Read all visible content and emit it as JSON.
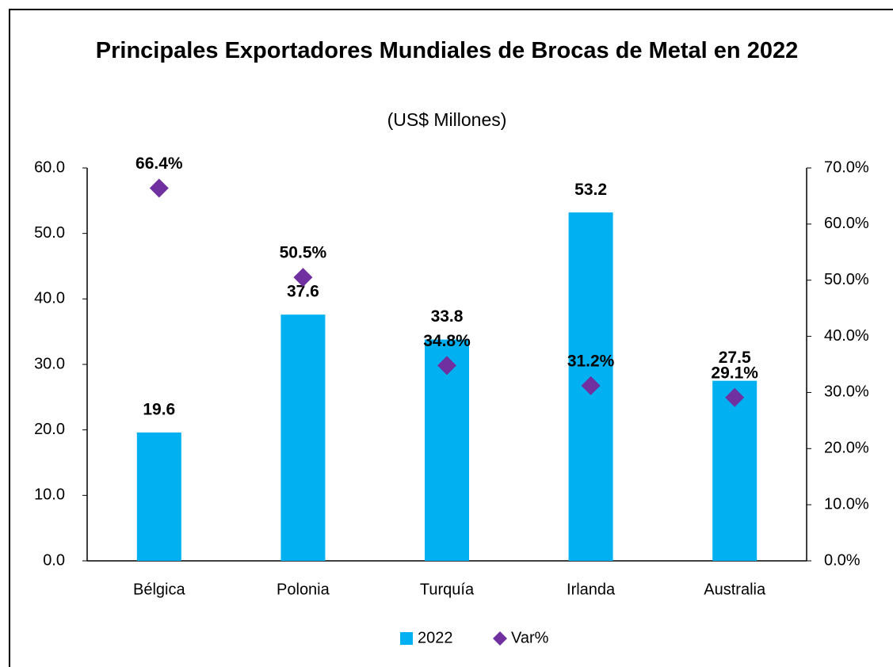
{
  "chart_data": {
    "type": "bar+scatter",
    "title": "Principales Exportadores Mundiales de Brocas de Metal en 2022",
    "subtitle": "(US$ Millones)",
    "categories": [
      "Bélgica",
      "Polonia",
      "Turquía",
      "Irlanda",
      "Australia"
    ],
    "series": [
      {
        "name": "2022",
        "type": "bar",
        "color": "#00b0f0",
        "values": [
          19.6,
          37.6,
          33.8,
          53.2,
          27.5
        ]
      },
      {
        "name": "Var%",
        "type": "scatter",
        "axis": "y2",
        "color": "#7030a0",
        "values": [
          66.4,
          50.5,
          34.8,
          31.2,
          29.1
        ],
        "value_labels": [
          "66.4%",
          "50.5%",
          "34.8%",
          "31.2%",
          "29.1%"
        ]
      }
    ],
    "ylim": [
      0,
      60
    ],
    "yticks": [
      {
        "value": 0,
        "label": "0.0"
      },
      {
        "value": 10,
        "label": "10.0"
      },
      {
        "value": 20,
        "label": "20.0"
      },
      {
        "value": 30,
        "label": "30.0"
      },
      {
        "value": 40,
        "label": "40.0"
      },
      {
        "value": 50,
        "label": "50.0"
      },
      {
        "value": 60,
        "label": "60.0"
      }
    ],
    "y2lim": [
      0,
      70
    ],
    "y2ticks": [
      {
        "value": 0,
        "label": "0.0%"
      },
      {
        "value": 10,
        "label": "10.0%"
      },
      {
        "value": 20,
        "label": "20.0%"
      },
      {
        "value": 30,
        "label": "30.0%"
      },
      {
        "value": 40,
        "label": "40.0%"
      },
      {
        "value": 50,
        "label": "50.0%"
      },
      {
        "value": 60,
        "label": "60.0%"
      },
      {
        "value": 70,
        "label": "70.0%"
      }
    ],
    "legend": "bottom",
    "grid": false
  }
}
